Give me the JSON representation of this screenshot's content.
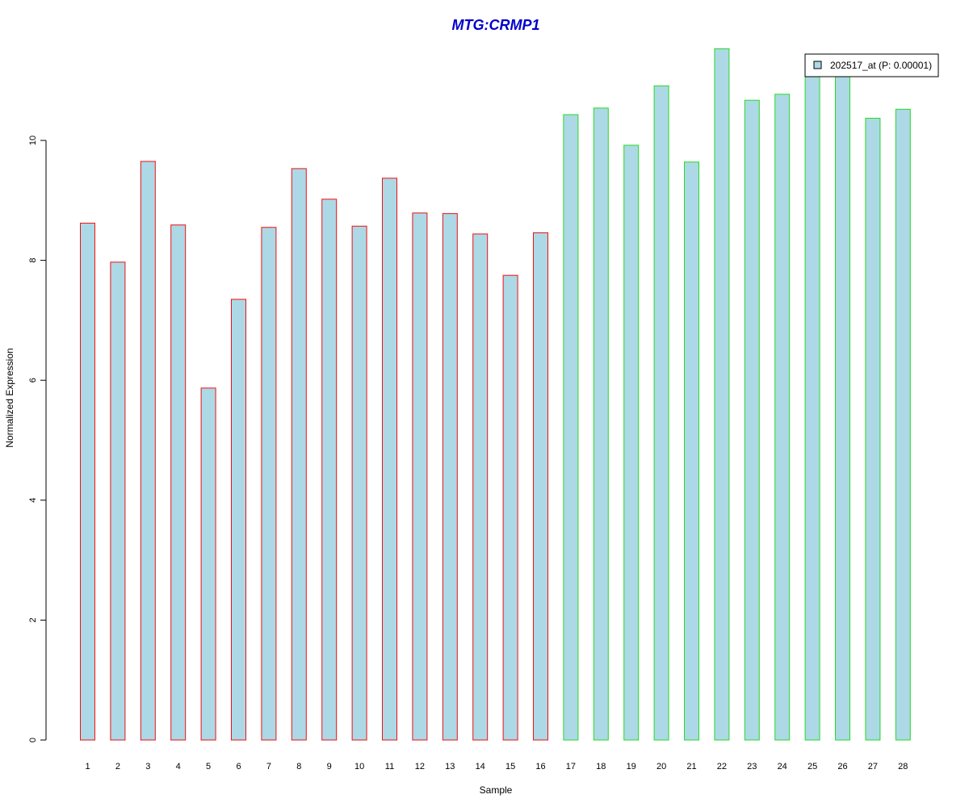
{
  "chart_data": {
    "type": "bar",
    "title": "MTG:CRMP1",
    "xlabel": "Sample",
    "ylabel": "Normalized Expression",
    "ylim": [
      0,
      11.6
    ],
    "yticks": [
      0,
      2,
      4,
      6,
      8,
      10
    ],
    "categories": [
      "1",
      "2",
      "3",
      "4",
      "5",
      "6",
      "7",
      "8",
      "9",
      "10",
      "11",
      "12",
      "13",
      "14",
      "15",
      "16",
      "17",
      "18",
      "19",
      "20",
      "21",
      "22",
      "23",
      "24",
      "25",
      "26",
      "27",
      "28"
    ],
    "series": [
      {
        "name": "202517_at (P: 0.00001)",
        "values": [
          8.62,
          7.97,
          9.65,
          8.59,
          5.87,
          7.35,
          8.55,
          9.53,
          9.02,
          8.57,
          9.37,
          8.79,
          8.78,
          8.44,
          7.75,
          8.46,
          10.43,
          10.54,
          9.92,
          10.91,
          9.64,
          11.53,
          10.67,
          10.77,
          11.09,
          11.09,
          10.37,
          10.52
        ]
      }
    ],
    "group_colors": [
      "#EE1111",
      "#EE1111",
      "#EE1111",
      "#EE1111",
      "#EE1111",
      "#EE1111",
      "#EE1111",
      "#EE1111",
      "#EE1111",
      "#EE1111",
      "#EE1111",
      "#EE1111",
      "#EE1111",
      "#EE1111",
      "#EE1111",
      "#EE1111",
      "#22DD22",
      "#22DD22",
      "#22DD22",
      "#22DD22",
      "#22DD22",
      "#22DD22",
      "#22DD22",
      "#22DD22",
      "#22DD22",
      "#22DD22",
      "#22DD22",
      "#22DD22"
    ],
    "bar_fill": "#ADD8E6",
    "grid": false,
    "legend_position": "top-right"
  }
}
